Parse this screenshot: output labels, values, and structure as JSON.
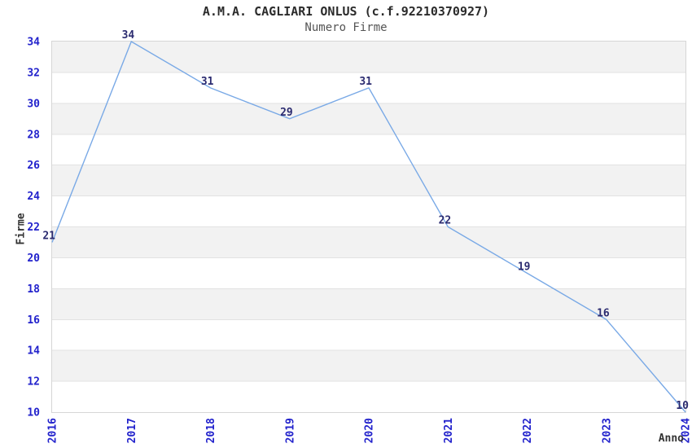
{
  "chart_data": {
    "type": "line",
    "title": "A.M.A. CAGLIARI ONLUS (c.f.92210370927)",
    "subtitle": "Numero Firme",
    "xlabel": "Anno",
    "ylabel": "Firme",
    "categories": [
      "2016",
      "2017",
      "2018",
      "2019",
      "2020",
      "2021",
      "2022",
      "2023",
      "2024"
    ],
    "values": [
      21,
      34,
      31,
      29,
      31,
      22,
      19,
      16,
      10
    ],
    "series": [
      {
        "name": "Numero Firme",
        "values": [
          21,
          34,
          31,
          29,
          31,
          22,
          19,
          16,
          10
        ]
      }
    ],
    "ylim": [
      10,
      34
    ],
    "ytick_step": 2,
    "yticks": [
      10,
      12,
      14,
      16,
      18,
      20,
      22,
      24,
      26,
      28,
      30,
      32,
      34
    ],
    "grid": true,
    "legend": "none",
    "point_labels_shown": true,
    "colors": {
      "line": "#79a9e6",
      "tick_label": "#2222cc",
      "point_label": "#2b2b70",
      "band": "#f2f2f2",
      "band_alt": "#ffffff",
      "gridline": "#e2e2e2",
      "plot_border": "#d6d6d6",
      "title": "#2b2b2b",
      "subtitle": "#555555",
      "axis_label": "#333333"
    }
  }
}
